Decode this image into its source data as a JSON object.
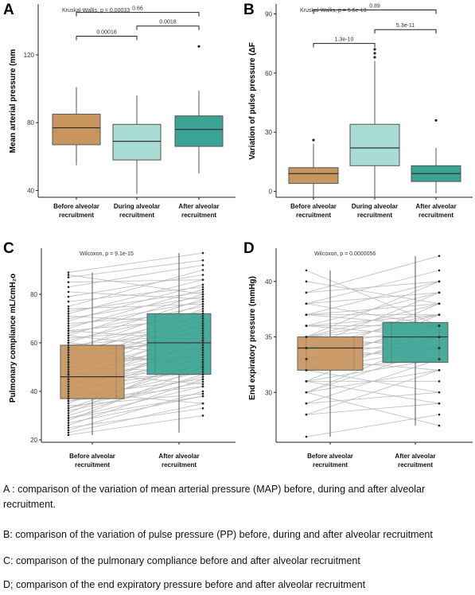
{
  "colors": {
    "before": "#c8955f",
    "during": "#a9dcd4",
    "after": "#3aa494",
    "line": "#bbbbbb"
  },
  "chart_data": [
    {
      "panel": "A",
      "type": "box",
      "ylabel": "Mean arterial pressure (mm",
      "ylim": [
        36,
        150
      ],
      "yticks": [
        40,
        80,
        120
      ],
      "categories": [
        "Before alveolar recruitment",
        "During alveolar recruitment",
        "After alveolar recruitment"
      ],
      "boxes": [
        {
          "q1": 67,
          "median": 77,
          "q3": 85,
          "whisker_low": 55,
          "whisker_high": 101,
          "outliers": []
        },
        {
          "q1": 58,
          "median": 69,
          "q3": 79,
          "whisker_low": 38,
          "whisker_high": 96,
          "outliers": []
        },
        {
          "q1": 66,
          "median": 76,
          "q3": 84,
          "whisker_low": 50,
          "whisker_high": 99,
          "outliers": [
            125
          ]
        }
      ],
      "test": "Kruskal-Wallis, p = 0.00033",
      "comparisons": [
        {
          "from": 0,
          "to": 1,
          "label": "0.00018",
          "y": 131
        },
        {
          "from": 1,
          "to": 2,
          "label": "0.0018",
          "y": 137
        },
        {
          "from": 0,
          "to": 2,
          "label": "0.66",
          "y": 145
        }
      ]
    },
    {
      "panel": "B",
      "type": "box",
      "ylabel": "Variation of pulse pressure (ΔF",
      "ylim": [
        -3,
        95
      ],
      "yticks": [
        0,
        30,
        60,
        90
      ],
      "categories": [
        "Before alveolar recruitment",
        "During alveolar recruitment",
        "After alveolar recruitment"
      ],
      "boxes": [
        {
          "q1": 4,
          "median": 9,
          "q3": 12,
          "whisker_low": -3,
          "whisker_high": 24,
          "outliers": [
            26
          ]
        },
        {
          "q1": 13,
          "median": 22,
          "q3": 34,
          "whisker_low": -3,
          "whisker_high": 66,
          "outliers": [
            68,
            70,
            72
          ]
        },
        {
          "q1": 5,
          "median": 9,
          "q3": 13,
          "whisker_low": -1,
          "whisker_high": 22,
          "outliers": [
            36
          ]
        }
      ],
      "test": "Kruskal-Wallis, p = 5.6e-13",
      "comparisons": [
        {
          "from": 0,
          "to": 1,
          "label": "1.3e-10",
          "y": 75
        },
        {
          "from": 1,
          "to": 2,
          "label": "5.3e-11",
          "y": 82
        },
        {
          "from": 0,
          "to": 2,
          "label": "0.89",
          "y": 92
        }
      ]
    },
    {
      "panel": "C",
      "type": "paired-box",
      "ylabel": "Pulmonary compliance mL/cmH₂o",
      "ylim": [
        19,
        99
      ],
      "yticks": [
        20,
        40,
        60,
        80
      ],
      "categories": [
        "Before alveolar recruitment",
        "After alveolar recruitment"
      ],
      "boxes": [
        {
          "q1": 37,
          "median": 46,
          "q3": 59,
          "whisker_low": 22,
          "whisker_high": 89
        },
        {
          "q1": 47,
          "median": 60,
          "q3": 72,
          "whisker_low": 23,
          "whisker_high": 97
        }
      ],
      "test": "Wilcoxon, p = 9.1e-15",
      "pairs": [
        [
          22,
          30
        ],
        [
          23,
          35
        ],
        [
          24,
          40
        ],
        [
          25,
          33
        ],
        [
          26,
          45
        ],
        [
          27,
          38
        ],
        [
          28,
          50
        ],
        [
          29,
          42
        ],
        [
          30,
          47
        ],
        [
          31,
          55
        ],
        [
          32,
          44
        ],
        [
          33,
          52
        ],
        [
          34,
          39
        ],
        [
          35,
          58
        ],
        [
          36,
          48
        ],
        [
          37,
          62
        ],
        [
          37,
          51
        ],
        [
          38,
          45
        ],
        [
          39,
          56
        ],
        [
          40,
          60
        ],
        [
          41,
          49
        ],
        [
          42,
          64
        ],
        [
          42,
          57
        ],
        [
          43,
          53
        ],
        [
          44,
          66
        ],
        [
          45,
          59
        ],
        [
          45,
          47
        ],
        [
          46,
          61
        ],
        [
          47,
          68
        ],
        [
          47,
          55
        ],
        [
          48,
          63
        ],
        [
          49,
          70
        ],
        [
          50,
          58
        ],
        [
          51,
          72
        ],
        [
          52,
          65
        ],
        [
          52,
          54
        ],
        [
          53,
          67
        ],
        [
          54,
          74
        ],
        [
          55,
          62
        ],
        [
          56,
          69
        ],
        [
          57,
          76
        ],
        [
          57,
          60
        ],
        [
          58,
          71
        ],
        [
          59,
          64
        ],
        [
          60,
          78
        ],
        [
          61,
          73
        ],
        [
          62,
          66
        ],
        [
          63,
          80
        ],
        [
          64,
          75
        ],
        [
          65,
          70
        ],
        [
          66,
          82
        ],
        [
          67,
          77
        ],
        [
          68,
          72
        ],
        [
          69,
          84
        ],
        [
          70,
          79
        ],
        [
          71,
          68
        ],
        [
          72,
          86
        ],
        [
          73,
          81
        ],
        [
          74,
          76
        ],
        [
          75,
          90
        ],
        [
          77,
          83
        ],
        [
          79,
          88
        ],
        [
          81,
          78
        ],
        [
          83,
          92
        ],
        [
          85,
          86
        ],
        [
          87,
          94
        ],
        [
          88,
          80
        ],
        [
          89,
          97
        ],
        [
          44,
          50
        ],
        [
          40,
          35
        ],
        [
          36,
          42
        ],
        [
          50,
          48
        ],
        [
          60,
          55
        ],
        [
          55,
          52
        ],
        [
          65,
          61
        ],
        [
          48,
          43
        ],
        [
          58,
          50
        ],
        [
          63,
          57
        ],
        [
          33,
          46
        ],
        [
          29,
          38
        ]
      ]
    },
    {
      "panel": "D",
      "type": "paired-box",
      "ylabel": "End expiratory pressure (mmHg)",
      "ylim": [
        25.5,
        43
      ],
      "yticks": [
        30,
        35,
        40
      ],
      "categories": [
        "Before alveolar recruitment",
        "After alveolar recruitment"
      ],
      "boxes": [
        {
          "q1": 32,
          "median": 34,
          "q3": 35,
          "whisker_low": 26,
          "whisker_high": 41
        },
        {
          "q1": 32.7,
          "median": 35,
          "q3": 36.3,
          "whisker_low": 27,
          "whisker_high": 42.3
        }
      ],
      "test": "Wilcoxon, p = 0.0000056",
      "pairs": [
        [
          26,
          28
        ],
        [
          28,
          29
        ],
        [
          28,
          32
        ],
        [
          29,
          33
        ],
        [
          29,
          30
        ],
        [
          30,
          32
        ],
        [
          30,
          35
        ],
        [
          30,
          34
        ],
        [
          31,
          33
        ],
        [
          31,
          36
        ],
        [
          31,
          29
        ],
        [
          32,
          34
        ],
        [
          32,
          35
        ],
        [
          32,
          37
        ],
        [
          32,
          33
        ],
        [
          33,
          35
        ],
        [
          33,
          36
        ],
        [
          33,
          32
        ],
        [
          33,
          38
        ],
        [
          34,
          35
        ],
        [
          34,
          36
        ],
        [
          34,
          37
        ],
        [
          34,
          33
        ],
        [
          34,
          39
        ],
        [
          35,
          36
        ],
        [
          35,
          38
        ],
        [
          35,
          34
        ],
        [
          35,
          40
        ],
        [
          35,
          37
        ],
        [
          36,
          37
        ],
        [
          36,
          39
        ],
        [
          36,
          35
        ],
        [
          37,
          38
        ],
        [
          37,
          40
        ],
        [
          37,
          36
        ],
        [
          38,
          39
        ],
        [
          38,
          41
        ],
        [
          39,
          40
        ],
        [
          39,
          42.3
        ],
        [
          40,
          38
        ],
        [
          41,
          36
        ],
        [
          35,
          35
        ],
        [
          33,
          34
        ],
        [
          36,
          36
        ],
        [
          34,
          34
        ],
        [
          32,
          30
        ],
        [
          31,
          31
        ],
        [
          30,
          27
        ],
        [
          37,
          37
        ],
        [
          38,
          36
        ]
      ]
    }
  ],
  "captions": [
    "A : comparison of the variation of mean arterial pressure (MAP) before, during and after alveolar recruitment.",
    "B: comparison of the variation of pulse pressure (PP) before, during and after alveolar recruitment",
    " C: comparison of the pulmonary compliance before and after alveolar recruitment",
    "D; comparison of the end expiratory pressure before and after alveolar recruitment"
  ]
}
